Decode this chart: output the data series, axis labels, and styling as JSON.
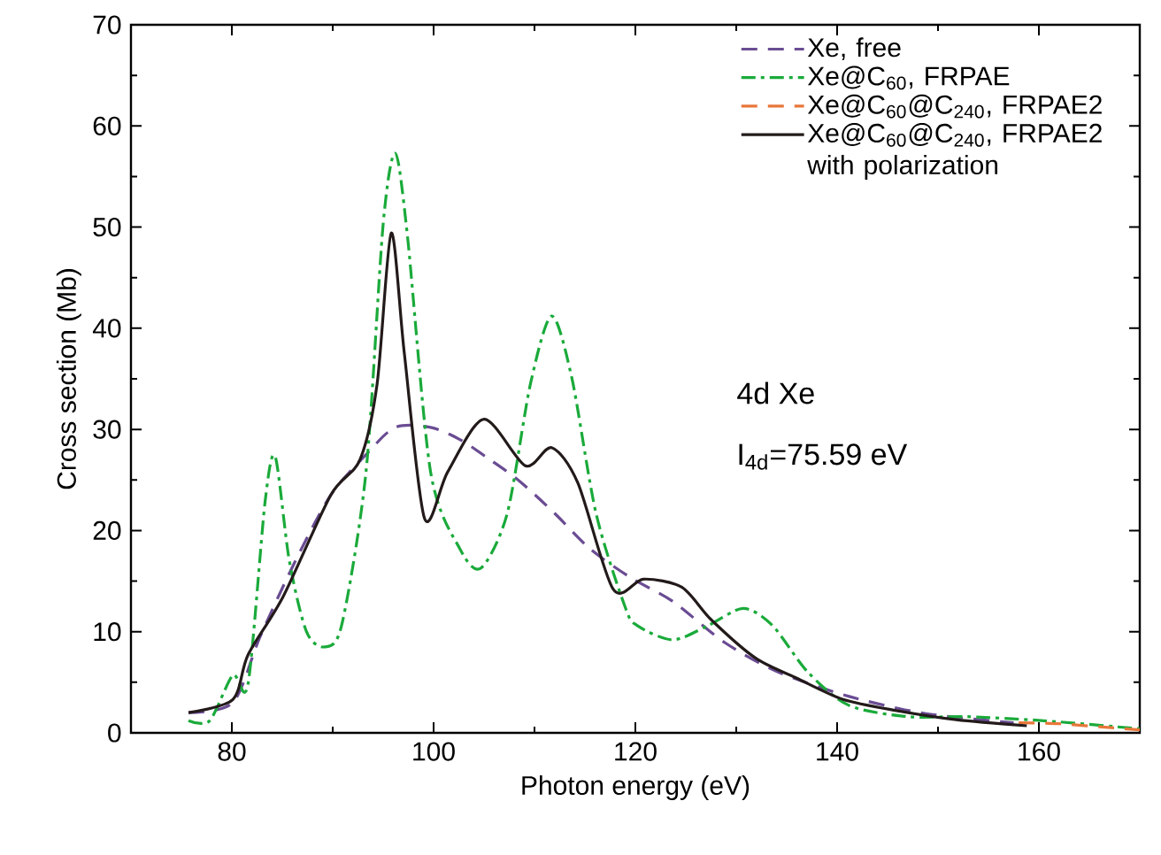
{
  "chart_data": {
    "type": "line",
    "xlabel": "Photon energy (eV)",
    "ylabel": "Cross section (Mb)",
    "xlim": [
      70,
      170
    ],
    "ylim": [
      0,
      70
    ],
    "xticks": [
      80,
      100,
      120,
      140,
      160
    ],
    "yticks": [
      0,
      10,
      20,
      30,
      40,
      50,
      60,
      70
    ],
    "legend": "top right",
    "grid": false,
    "marker": "none",
    "annotations": [
      "4d Xe",
      "I$_{4d}$=75.59 eV"
    ],
    "series": [
      {
        "name": "Xe, free",
        "color": "#6a4c93",
        "line_style": "dashed",
        "x": [
          75.7,
          80.1,
          82.8,
          86.3,
          89.8,
          93.3,
          96.2,
          99.7,
          102.6,
          105.6,
          108.5,
          112.0,
          115.5,
          119.6,
          123.7,
          128.9,
          134.2,
          141.2,
          148.8,
          157.5
        ],
        "values": [
          2.0,
          3.0,
          9.5,
          17.0,
          23.5,
          27.5,
          30.2,
          30.2,
          29.0,
          27.0,
          24.9,
          21.7,
          18.2,
          15.3,
          13.0,
          8.9,
          6.0,
          3.6,
          1.9,
          1.0
        ]
      },
      {
        "name": "Xe@C$_{60}$, FRPAE",
        "color": "#1aaa3a",
        "line_style": "dashdot",
        "x": [
          75.7,
          77.8,
          80.1,
          81.6,
          83.3,
          84.3,
          85.7,
          87.4,
          89.2,
          90.9,
          93.3,
          95.0,
          96.2,
          97.4,
          99.7,
          102.6,
          104.7,
          107.3,
          109.6,
          111.7,
          113.7,
          116.1,
          119.0,
          120.2,
          123.7,
          127.2,
          130.7,
          133.6,
          137.1,
          141.2,
          147.1,
          152.9,
          160.5,
          170.0
        ],
        "values": [
          1.2,
          1.2,
          5.7,
          4.8,
          22.9,
          27.3,
          17.0,
          10.0,
          8.5,
          10.7,
          25.8,
          50.3,
          57.3,
          49.2,
          25.8,
          18.2,
          16.3,
          21.7,
          34.5,
          41.2,
          35.1,
          21.7,
          12.4,
          10.6,
          9.2,
          10.6,
          12.3,
          10.6,
          6.0,
          2.7,
          1.6,
          1.6,
          1.2,
          0.4
        ]
      },
      {
        "name": "Xe@C$_{60}$@C$_{240}$, FRPAE2",
        "color": "#e8773a",
        "line_style": "dashed",
        "x": [
          158.0,
          162.0,
          166.0,
          170.0
        ],
        "values": [
          1.0,
          0.9,
          0.6,
          0.3
        ]
      },
      {
        "name": "Xe@C$_{60}$@C$_{240}$, FRPAE2 with polarization",
        "color": "#231a1a",
        "line_style": "solid",
        "x": [
          75.7,
          80.1,
          81.6,
          85.1,
          89.8,
          92.7,
          94.4,
          95.8,
          97.1,
          99.1,
          101.4,
          105.0,
          109.1,
          111.7,
          114.3,
          117.8,
          120.8,
          124.6,
          127.5,
          131.9,
          136.0,
          140.6,
          145.9,
          151.8,
          158.8
        ],
        "values": [
          2.0,
          3.3,
          7.7,
          13.5,
          23.5,
          27.0,
          34.5,
          49.4,
          37.5,
          21.2,
          25.8,
          31.0,
          26.4,
          28.2,
          24.7,
          14.2,
          15.2,
          14.4,
          11.2,
          7.4,
          5.4,
          3.3,
          2.2,
          1.3,
          0.7
        ]
      }
    ]
  }
}
